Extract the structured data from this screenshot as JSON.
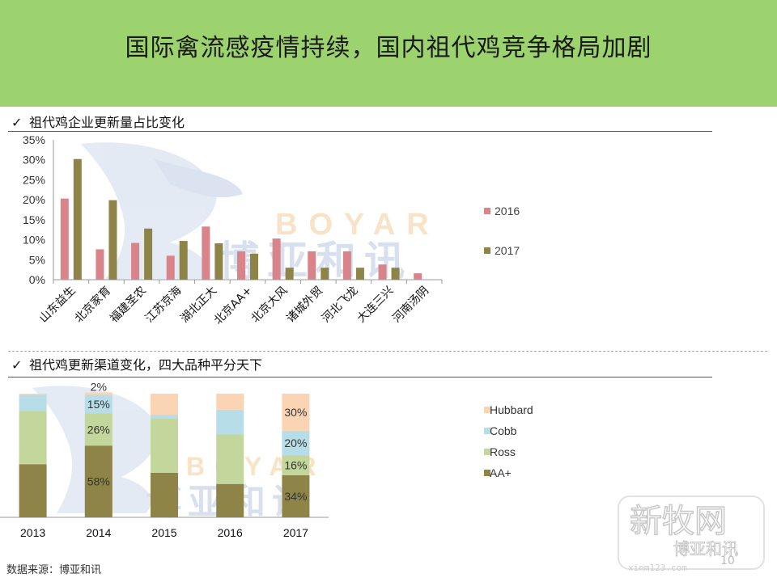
{
  "slide": {
    "title": "国际禽流感疫情持续，国内祖代鸡竞争格局加剧",
    "page_number": "10",
    "source": "数据来源：博亚和讯",
    "check_mark": "✓"
  },
  "watermark": {
    "brand_en": "BOYAR",
    "brand_cn": "博亚和讯",
    "corner_cn_1": "新牧网",
    "corner_cn_2": "博亚和讯",
    "corner_url": "xinm123.com"
  },
  "colors": {
    "header_bg": "#9dd36e",
    "s2016": "#d9838a",
    "s2017": "#8e8447",
    "hubbard": "#fbd4b4",
    "cobb": "#b7dde8",
    "ross": "#c3d69b",
    "aaplus": "#8e8447"
  },
  "chart_data": [
    {
      "type": "bar",
      "title": "祖代鸡企业更新量占比变化",
      "categories": [
        "山东益生",
        "北京家育",
        "福建圣农",
        "江苏京海",
        "湖北正大",
        "北京AA+",
        "北京大风",
        "诸城外贸",
        "河北飞龙",
        "大连三兴",
        "河南汤阴"
      ],
      "series": [
        {
          "name": "2016",
          "values": [
            20.3,
            7.6,
            9.2,
            6.0,
            13.3,
            7.1,
            10.3,
            7.1,
            7.1,
            3.8,
            1.6
          ]
        },
        {
          "name": "2017",
          "values": [
            30.2,
            19.9,
            12.8,
            9.7,
            9.1,
            6.5,
            3.0,
            3.0,
            3.0,
            3.0,
            0
          ]
        }
      ],
      "yticks": [
        "0%",
        "5%",
        "10%",
        "15%",
        "20%",
        "25%",
        "30%",
        "35%"
      ],
      "ylim": [
        0,
        35
      ],
      "legend": "right"
    },
    {
      "type": "bar",
      "stacked": true,
      "title": "祖代鸡更新渠道变化，四大品种平分天下",
      "categories": [
        "2013",
        "2014",
        "2015",
        "2016",
        "2017"
      ],
      "series": [
        {
          "name": "AA+",
          "values": [
            43,
            58,
            36,
            27,
            34
          ]
        },
        {
          "name": "Ross",
          "values": [
            43,
            26,
            44,
            40,
            16
          ]
        },
        {
          "name": "Cobb",
          "values": [
            13,
            15,
            3,
            20,
            20
          ]
        },
        {
          "name": "Hubbard",
          "values": [
            1,
            2,
            17,
            13,
            30
          ]
        }
      ],
      "data_labels": [
        {
          "category": "2014",
          "series": "Hubbard",
          "text": "2%"
        },
        {
          "category": "2014",
          "series": "Cobb",
          "text": "15%"
        },
        {
          "category": "2014",
          "series": "Ross",
          "text": "26%"
        },
        {
          "category": "2014",
          "series": "AA+",
          "text": "58%"
        },
        {
          "category": "2017",
          "series": "Hubbard",
          "text": "30%"
        },
        {
          "category": "2017",
          "series": "Cobb",
          "text": "20%"
        },
        {
          "category": "2017",
          "series": "Ross",
          "text": "16%"
        },
        {
          "category": "2017",
          "series": "AA+",
          "text": "34%"
        }
      ],
      "ylim": [
        0,
        100
      ],
      "legend": "right"
    }
  ]
}
